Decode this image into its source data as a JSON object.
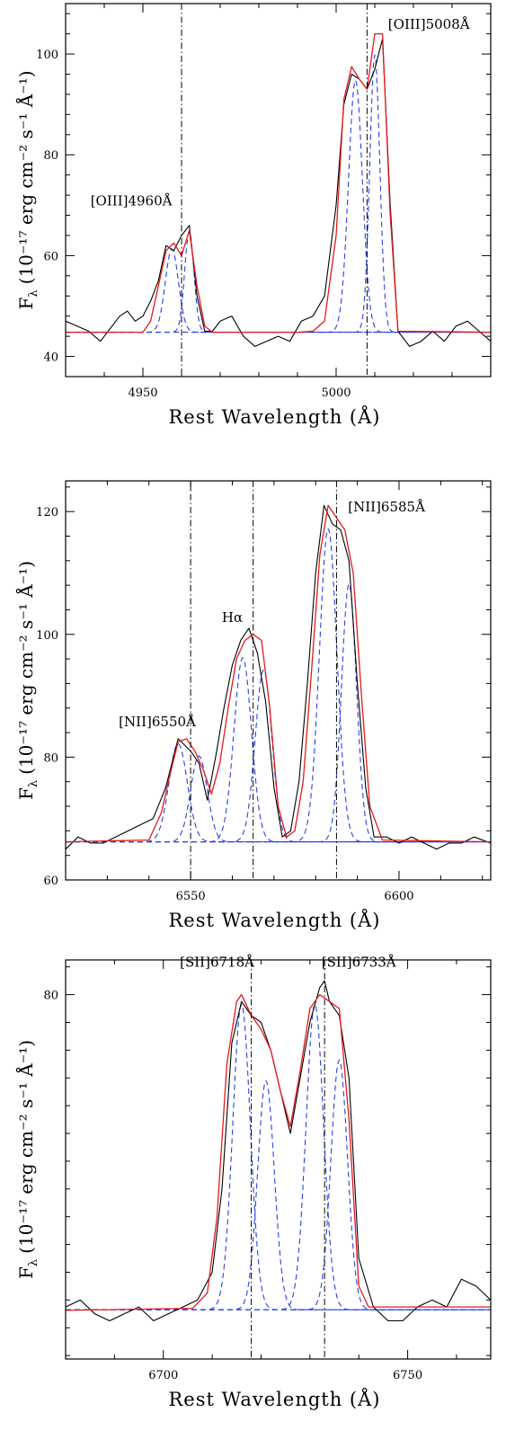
{
  "chart_data": [
    {
      "type": "line",
      "panel": "oiii",
      "xlabel": "Rest Wavelength (Å)",
      "ylabel_main": "F",
      "ylabel_sub": "λ",
      "ylabel_unit": "(10⁻¹⁷ erg cm⁻² s⁻¹ Å⁻¹)",
      "xlim": [
        4930,
        5040
      ],
      "ylim": [
        36,
        110
      ],
      "xticks": [
        4950,
        5000
      ],
      "yticks": [
        40,
        60,
        80,
        100
      ],
      "vlines": [
        4960,
        5008
      ],
      "annotations": [
        {
          "text": "[OIII]4960Å",
          "x": 4947,
          "y": 70
        },
        {
          "text": "[OIII]5008Å",
          "x": 5024,
          "y": 105
        }
      ],
      "series": [
        {
          "role": "data",
          "color": "#000000",
          "x": [
            4930,
            4933,
            4936,
            4939,
            4942,
            4944,
            4946,
            4948,
            4950,
            4952,
            4954,
            4956,
            4958,
            4960,
            4962,
            4964,
            4966,
            4968,
            4970,
            4973,
            4976,
            4979,
            4982,
            4985,
            4988,
            4991,
            4994,
            4997,
            5000,
            5002,
            5004,
            5006,
            5008,
            5010,
            5012,
            5014,
            5016,
            5019,
            5022,
            5025,
            5028,
            5031,
            5034,
            5037,
            5040
          ],
          "y": [
            47,
            46,
            45,
            43,
            46,
            48,
            49,
            47,
            48,
            51,
            55,
            62,
            61,
            64,
            66,
            52,
            45,
            45,
            47,
            48,
            44,
            42,
            43,
            44,
            43,
            47,
            48,
            52,
            70,
            90,
            96,
            95,
            93,
            97,
            103,
            70,
            45,
            42,
            43,
            45,
            43,
            46,
            47,
            45,
            43
          ]
        },
        {
          "role": "model",
          "color": "#e31a1c",
          "x": [
            4930,
            4950,
            4952,
            4954,
            4956,
            4958,
            4960,
            4962,
            4964,
            4966,
            4968,
            4990,
            4994,
            4997,
            5000,
            5002,
            5004,
            5006,
            5008,
            5010,
            5012,
            5014,
            5016,
            5040
          ],
          "y": [
            44.8,
            44.8,
            47,
            54,
            61,
            62.5,
            60,
            65,
            54,
            46,
            44.8,
            44.8,
            45,
            47,
            64,
            91,
            97.5,
            95,
            93,
            104,
            104,
            68,
            45,
            44.8
          ]
        },
        {
          "role": "component",
          "color": "#2a3fe8",
          "dashed": true,
          "params": {
            "baseline": 44.8,
            "center": 4957.5,
            "amplitude": 16.5,
            "sigma": 1.7
          }
        },
        {
          "role": "component",
          "color": "#2a3fe8",
          "dashed": true,
          "params": {
            "baseline": 44.8,
            "center": 4962,
            "amplitude": 20,
            "sigma": 1.2
          }
        },
        {
          "role": "component",
          "color": "#2a3fe8",
          "dashed": true,
          "params": {
            "baseline": 44.8,
            "center": 5005,
            "amplitude": 50,
            "sigma": 1.8
          }
        },
        {
          "role": "component",
          "color": "#2a3fe8",
          "dashed": true,
          "params": {
            "baseline": 44.8,
            "center": 5010,
            "amplitude": 55,
            "sigma": 1.3
          }
        }
      ]
    },
    {
      "type": "line",
      "panel": "halpha-nii",
      "xlabel": "Rest Wavelength (Å)",
      "ylabel_main": "F",
      "ylabel_sub": "λ",
      "ylabel_unit": "(10⁻¹⁷ erg cm⁻² s⁻¹ Å⁻¹)",
      "xlim": [
        6520,
        6622
      ],
      "ylim": [
        60,
        125
      ],
      "xticks": [
        6550,
        6600
      ],
      "yticks": [
        60,
        80,
        100,
        120
      ],
      "vlines": [
        6550,
        6565,
        6585
      ],
      "annotations": [
        {
          "text": "[NII]6550Å",
          "x": 6542,
          "y": 85
        },
        {
          "text": "Hα",
          "x": 6560,
          "y": 102
        },
        {
          "text": "[NII]6585Å",
          "x": 6597,
          "y": 120
        }
      ],
      "series": [
        {
          "role": "data",
          "color": "#000000",
          "x": [
            6520,
            6523,
            6526,
            6529,
            6532,
            6535,
            6538,
            6541,
            6544,
            6547,
            6550,
            6552,
            6554,
            6556,
            6558,
            6560,
            6562,
            6564,
            6566,
            6568,
            6570,
            6572,
            6574,
            6576,
            6578,
            6580,
            6582,
            6584,
            6586,
            6588,
            6590,
            6592,
            6594,
            6597,
            6600,
            6603,
            6606,
            6609,
            6612,
            6615,
            6618,
            6622
          ],
          "y": [
            65,
            67,
            66,
            66,
            67,
            68,
            69,
            70,
            75,
            83,
            81,
            79,
            73,
            80,
            88,
            95,
            99,
            101,
            97,
            89,
            75,
            67,
            68,
            76,
            92,
            110,
            121,
            118,
            117,
            112,
            92,
            75,
            67,
            67,
            66,
            67,
            66,
            65,
            66,
            66,
            67,
            66
          ]
        },
        {
          "role": "model",
          "color": "#e31a1c",
          "x": [
            6520,
            6540,
            6543,
            6545,
            6547,
            6549,
            6551,
            6553,
            6555,
            6557,
            6559,
            6561,
            6563,
            6565,
            6567,
            6569,
            6571,
            6573,
            6575,
            6577,
            6579,
            6581,
            6583,
            6585,
            6587,
            6589,
            6591,
            6593,
            6596,
            6622
          ],
          "y": [
            66.2,
            66.5,
            71,
            77,
            82.5,
            83,
            81,
            78,
            74,
            79,
            88,
            96,
            99,
            100,
            99,
            88,
            72,
            67,
            68,
            76,
            94,
            113,
            121,
            119,
            117,
            110,
            90,
            72,
            66.5,
            66.2
          ]
        },
        {
          "role": "component",
          "color": "#2a3fe8",
          "dashed": true,
          "params": {
            "baseline": 66.2,
            "center": 6547,
            "amplitude": 16,
            "sigma": 2.2
          }
        },
        {
          "role": "component",
          "color": "#2a3fe8",
          "dashed": true,
          "params": {
            "baseline": 66.2,
            "center": 6552,
            "amplitude": 14,
            "sigma": 2.0
          }
        },
        {
          "role": "component",
          "color": "#2a3fe8",
          "dashed": true,
          "params": {
            "baseline": 66.2,
            "center": 6562.5,
            "amplitude": 30,
            "sigma": 2.1
          }
        },
        {
          "role": "component",
          "color": "#2a3fe8",
          "dashed": true,
          "params": {
            "baseline": 66.2,
            "center": 6567.5,
            "amplitude": 28,
            "sigma": 2.0
          }
        },
        {
          "role": "component",
          "color": "#2a3fe8",
          "dashed": true,
          "params": {
            "baseline": 66.2,
            "center": 6583,
            "amplitude": 51,
            "sigma": 2.1
          }
        },
        {
          "role": "component",
          "color": "#2a3fe8",
          "dashed": true,
          "params": {
            "baseline": 66.2,
            "center": 6588,
            "amplitude": 42,
            "sigma": 1.8
          }
        }
      ]
    },
    {
      "type": "line",
      "panel": "sii",
      "xlabel": "Rest Wavelength (Å)",
      "ylabel_main": "F",
      "ylabel_sub": "λ",
      "ylabel_unit": "(10⁻¹⁷ erg cm⁻² s⁻¹ Å⁻¹)",
      "xlim": [
        6680,
        6767
      ],
      "ylim": [
        27.5,
        85
      ],
      "xticks": [
        6700,
        6750
      ],
      "yticks": [
        80
      ],
      "vlines": [
        6718,
        6733
      ],
      "annotations": [
        {
          "text": "[SII]6718Å",
          "x": 6711,
          "y": 84
        },
        {
          "text": "[SII]6733Å",
          "x": 6740,
          "y": 84
        }
      ],
      "series": [
        {
          "role": "data",
          "color": "#000000",
          "x": [
            6680,
            6683,
            6686,
            6689,
            6692,
            6695,
            6698,
            6701,
            6704,
            6707,
            6710,
            6712,
            6714,
            6716,
            6718,
            6720,
            6722,
            6724,
            6726,
            6728,
            6730,
            6732,
            6733,
            6734,
            6736,
            6738,
            6740,
            6743,
            6746,
            6749,
            6752,
            6755,
            6758,
            6761,
            6764,
            6767
          ],
          "y": [
            35,
            36,
            34,
            33,
            34,
            35,
            33,
            34,
            35,
            36,
            40,
            52,
            73,
            79,
            77,
            76,
            72,
            66,
            60,
            68,
            76,
            81,
            82,
            79,
            77,
            68,
            42,
            35,
            33,
            33,
            35,
            36,
            35,
            39,
            38,
            36
          ],
          "sample_note": ""
        },
        {
          "role": "model",
          "color": "#e31a1c",
          "x": [
            6680,
            6706,
            6709,
            6711,
            6713,
            6715,
            6716,
            6718,
            6720,
            6722,
            6724,
            6726,
            6728,
            6730,
            6732,
            6734,
            6736,
            6738,
            6740,
            6742,
            6767
          ],
          "y": [
            34.5,
            34.8,
            37,
            48,
            70,
            79,
            80,
            77,
            75,
            72,
            66,
            61,
            69,
            78,
            80,
            79,
            78,
            62,
            38,
            35,
            35
          ]
        },
        {
          "role": "component",
          "color": "#2a3fe8",
          "dashed": true,
          "params": {
            "baseline": 34.6,
            "center": 6716,
            "amplitude": 44,
            "sigma": 1.8
          }
        },
        {
          "role": "component",
          "color": "#2a3fe8",
          "dashed": true,
          "params": {
            "baseline": 34.6,
            "center": 6721,
            "amplitude": 33,
            "sigma": 1.7
          }
        },
        {
          "role": "component",
          "color": "#2a3fe8",
          "dashed": true,
          "params": {
            "baseline": 34.6,
            "center": 6731,
            "amplitude": 44,
            "sigma": 1.8
          }
        },
        {
          "role": "component",
          "color": "#2a3fe8",
          "dashed": true,
          "params": {
            "baseline": 34.6,
            "center": 6736,
            "amplitude": 36,
            "sigma": 1.7
          }
        }
      ]
    }
  ]
}
